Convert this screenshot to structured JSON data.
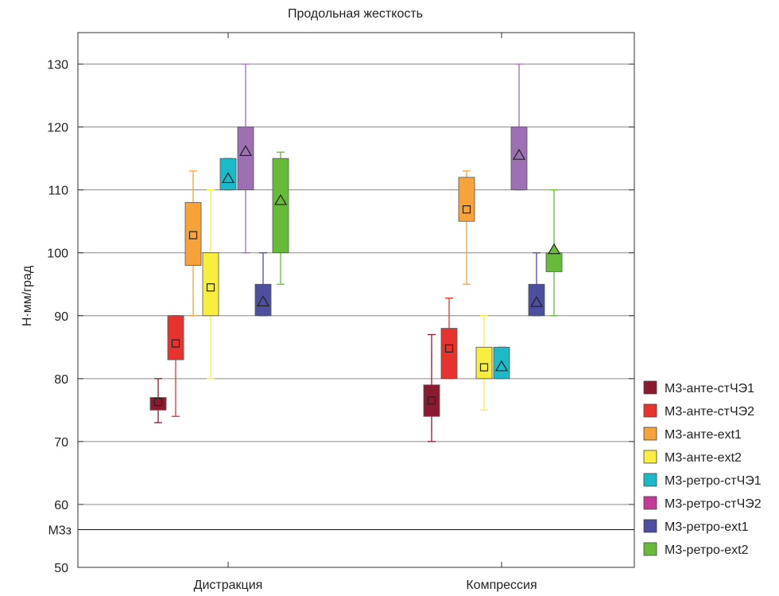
{
  "chart_data": {
    "type": "box",
    "title": "Продольная жесткость",
    "ylabel": "Н·мм/град",
    "xlabel": "",
    "ylim": [
      50,
      135
    ],
    "yticks": [
      50,
      60,
      70,
      80,
      90,
      100,
      110,
      120,
      130
    ],
    "gridlines": [
      60,
      70,
      80,
      90,
      100,
      110,
      120,
      130
    ],
    "reference_line": {
      "label": "М3з",
      "value": 56
    },
    "grid": true,
    "legend_position": "right",
    "categories": [
      "Дистракция",
      "Компрессия"
    ],
    "series": [
      {
        "name": "М3-анте-стЧЭ1",
        "color": "#8b1a2e",
        "marker": "square",
        "boxes": [
          {
            "min": 73,
            "q1": 75,
            "q3": 77,
            "max": 80,
            "mean": 76.3
          },
          {
            "min": 70,
            "q1": 74,
            "q3": 79,
            "max": 87,
            "mean": 76.5
          }
        ]
      },
      {
        "name": "М3-анте-стЧЭ2",
        "color": "#e8322e",
        "marker": "square",
        "boxes": [
          {
            "min": 74,
            "q1": 83,
            "q3": 90,
            "max": 90,
            "mean": 85.6
          },
          {
            "min": 80,
            "q1": 80,
            "q3": 88,
            "max": 92.8,
            "mean": 84.8
          }
        ]
      },
      {
        "name": "М3-анте-ext1",
        "color": "#f6a33b",
        "marker": "square",
        "boxes": [
          {
            "min": 90,
            "q1": 98,
            "q3": 108,
            "max": 113,
            "mean": 102.8
          },
          {
            "min": 95,
            "q1": 105,
            "q3": 112,
            "max": 113,
            "mean": 106.9
          }
        ]
      },
      {
        "name": "М3-анте-ext2",
        "color": "#f7ee3e",
        "marker": "square",
        "boxes": [
          {
            "min": 80,
            "q1": 90,
            "q3": 100,
            "max": 110,
            "mean": 94.5
          },
          {
            "min": 75,
            "q1": 80,
            "q3": 85,
            "max": 90,
            "mean": 81.8
          }
        ]
      },
      {
        "name": "М3-ретро-стЧЭ1",
        "color": "#1cb9c8",
        "marker": "triangle",
        "boxes": [
          {
            "min": 110,
            "q1": 110,
            "q3": 115,
            "max": 115,
            "mean": 111.8
          },
          {
            "min": 80,
            "q1": 80,
            "q3": 85,
            "max": 85,
            "mean": 81.9
          }
        ]
      },
      {
        "name": "М3-ретро-стЧЭ2",
        "color": "#c43a96",
        "box_color": "#9d6fb3",
        "marker": "triangle",
        "boxes": [
          {
            "min": 100,
            "q1": 110,
            "q3": 120,
            "max": 130,
            "mean": 116.1
          },
          {
            "min": 110,
            "q1": 110,
            "q3": 120,
            "max": 130,
            "mean": 115.5
          }
        ]
      },
      {
        "name": "М3-ретро-ext1",
        "color": "#4b4f9e",
        "marker": "triangle",
        "boxes": [
          {
            "min": 90,
            "q1": 90,
            "q3": 95,
            "max": 100,
            "mean": 92.2
          },
          {
            "min": 90,
            "q1": 90,
            "q3": 95,
            "max": 100,
            "mean": 92.1
          }
        ]
      },
      {
        "name": "М3-ретро-ext2",
        "color": "#68bb3a",
        "marker": "triangle",
        "boxes": [
          {
            "min": 95,
            "q1": 100,
            "q3": 115,
            "max": 116,
            "mean": 108.3
          },
          {
            "min": 90,
            "q1": 97,
            "q3": 100,
            "max": 110,
            "mean": 100.5
          }
        ]
      }
    ]
  }
}
